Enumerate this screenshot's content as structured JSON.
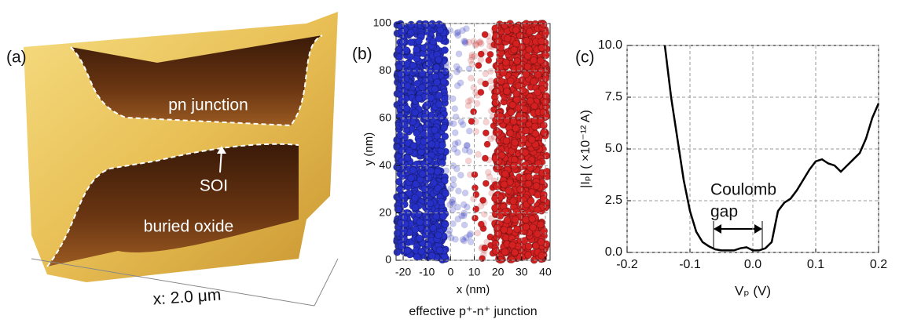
{
  "chart_data": [
    {
      "type": "image",
      "label": "(a)",
      "annotations": [
        "pn junction",
        "SOI",
        "buried oxide"
      ],
      "xlabel": "x: 2.0 μm"
    },
    {
      "type": "atoms",
      "label": "(b)",
      "xlabel": "x (nm)",
      "ylabel": "y (nm)",
      "caption": "effective p⁺-n⁺ junction",
      "xlim": [
        -23,
        42
      ],
      "xticks": [
        -20,
        -10,
        0,
        10,
        20,
        30,
        40
      ],
      "ylim": [
        0,
        100
      ],
      "yticks": [
        0,
        20,
        40,
        60,
        80,
        100
      ],
      "colors": [
        "#2630c8",
        "#d42020"
      ],
      "grid": true
    },
    {
      "type": "line",
      "label": "(c)",
      "xlabel": "Vₚ (V)",
      "ylabel": "|Iₚ| ( ×10⁻¹² A)",
      "annotation": [
        "Coulomb",
        "gap"
      ],
      "xlim": [
        -0.2,
        0.2
      ],
      "xticks": [
        -0.2,
        -0.1,
        {
          "value": 0,
          "label": "0.0"
        },
        0.1,
        0.2
      ],
      "ylim": [
        0,
        10
      ],
      "yticks": [
        {
          "value": 0,
          "label": "0.0"
        },
        2.5,
        {
          "value": 5,
          "label": "5.0"
        },
        7.5,
        {
          "value": 10,
          "label": "10.0"
        }
      ],
      "grid": true,
      "color": "#000000",
      "x": [
        -0.14,
        -0.13,
        -0.12,
        -0.11,
        -0.1,
        -0.09,
        -0.08,
        -0.07,
        -0.06,
        -0.05,
        -0.04,
        -0.03,
        -0.02,
        -0.01,
        0.0,
        0.01,
        0.02,
        0.03,
        0.04,
        0.05,
        0.06,
        0.07,
        0.08,
        0.09,
        0.1,
        0.11,
        0.12,
        0.13,
        0.14,
        0.15,
        0.16,
        0.17,
        0.18,
        0.19,
        0.2
      ],
      "values": [
        10,
        7.5,
        5.5,
        3.5,
        2.0,
        1.0,
        0.5,
        0.3,
        0.15,
        0.1,
        0.1,
        0.1,
        0.2,
        0.25,
        0.1,
        0.1,
        0.2,
        0.5,
        2.0,
        2.4,
        2.6,
        3.0,
        3.5,
        4.0,
        4.4,
        4.5,
        4.3,
        4.2,
        3.9,
        4.2,
        4.5,
        4.8,
        5.5,
        6.5,
        7.2
      ]
    }
  ]
}
